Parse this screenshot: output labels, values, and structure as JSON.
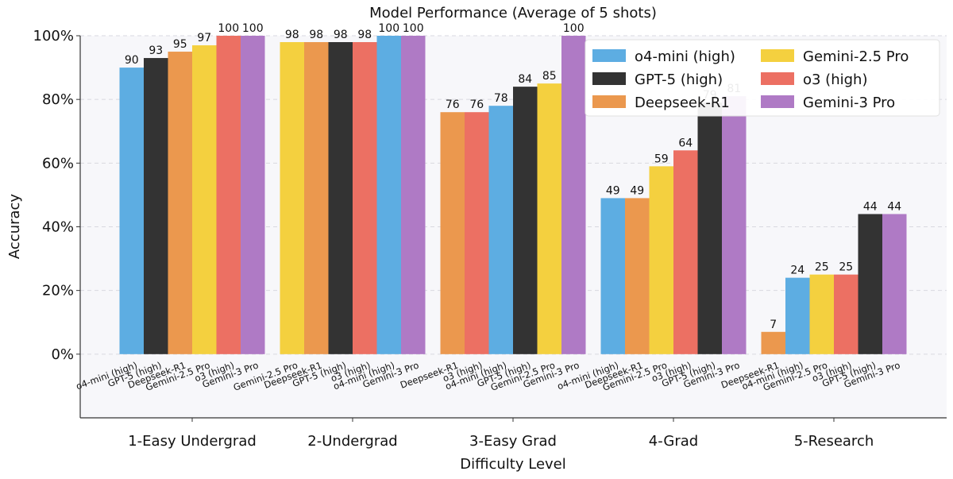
{
  "chart_data": {
    "type": "bar",
    "title": "Model Performance (Average of 5 shots)",
    "xlabel": "Difficulty Level",
    "ylabel": "Accuracy",
    "ylim": [
      -20,
      100
    ],
    "yticks": [
      0,
      20,
      40,
      60,
      80,
      100
    ],
    "ytick_labels": [
      "0%",
      "20%",
      "40%",
      "60%",
      "80%",
      "100%"
    ],
    "grid": true,
    "legend_position": "top-right",
    "legend": [
      {
        "name": "o4-mini (high)",
        "color": "#5DADE2"
      },
      {
        "name": "GPT-5 (high)",
        "color": "#333333"
      },
      {
        "name": "Deepseek-R1",
        "color": "#EB984E"
      },
      {
        "name": "Gemini-2.5 Pro",
        "color": "#F4D03F"
      },
      {
        "name": "o3 (high)",
        "color": "#EC7063"
      },
      {
        "name": "Gemini-3 Pro",
        "color": "#AF7AC5"
      }
    ],
    "groups": [
      {
        "label": "1-Easy Undergrad",
        "bars": [
          {
            "model": "o4-mini (high)",
            "value": 90
          },
          {
            "model": "GPT-5 (high)",
            "value": 93
          },
          {
            "model": "Deepseek-R1",
            "value": 95
          },
          {
            "model": "Gemini-2.5 Pro",
            "value": 97
          },
          {
            "model": "o3 (high)",
            "value": 100
          },
          {
            "model": "Gemini-3 Pro",
            "value": 100
          }
        ]
      },
      {
        "label": "2-Undergrad",
        "bars": [
          {
            "model": "Gemini-2.5 Pro",
            "value": 98
          },
          {
            "model": "Deepseek-R1",
            "value": 98
          },
          {
            "model": "GPT-5 (high)",
            "value": 98
          },
          {
            "model": "o3 (high)",
            "value": 98
          },
          {
            "model": "o4-mini (high)",
            "value": 100
          },
          {
            "model": "Gemini-3 Pro",
            "value": 100
          }
        ]
      },
      {
        "label": "3-Easy Grad",
        "bars": [
          {
            "model": "Deepseek-R1",
            "value": 76
          },
          {
            "model": "o3 (high)",
            "value": 76
          },
          {
            "model": "o4-mini (high)",
            "value": 78
          },
          {
            "model": "GPT-5 (high)",
            "value": 84
          },
          {
            "model": "Gemini-2.5 Pro",
            "value": 85
          },
          {
            "model": "Gemini-3 Pro",
            "value": 100
          }
        ]
      },
      {
        "label": "4-Grad",
        "bars": [
          {
            "model": "o4-mini (high)",
            "value": 49
          },
          {
            "model": "Deepseek-R1",
            "value": 49
          },
          {
            "model": "Gemini-2.5 Pro",
            "value": 59
          },
          {
            "model": "o3 (high)",
            "value": 64
          },
          {
            "model": "GPT-5 (high)",
            "value": 79
          },
          {
            "model": "Gemini-3 Pro",
            "value": 81
          }
        ]
      },
      {
        "label": "5-Research",
        "bars": [
          {
            "model": "Deepseek-R1",
            "value": 7
          },
          {
            "model": "o4-mini (high)",
            "value": 24
          },
          {
            "model": "Gemini-2.5 Pro",
            "value": 25
          },
          {
            "model": "o3 (high)",
            "value": 25
          },
          {
            "model": "GPT-5 (high)",
            "value": 44
          },
          {
            "model": "Gemini-3 Pro",
            "value": 44
          }
        ]
      }
    ]
  }
}
